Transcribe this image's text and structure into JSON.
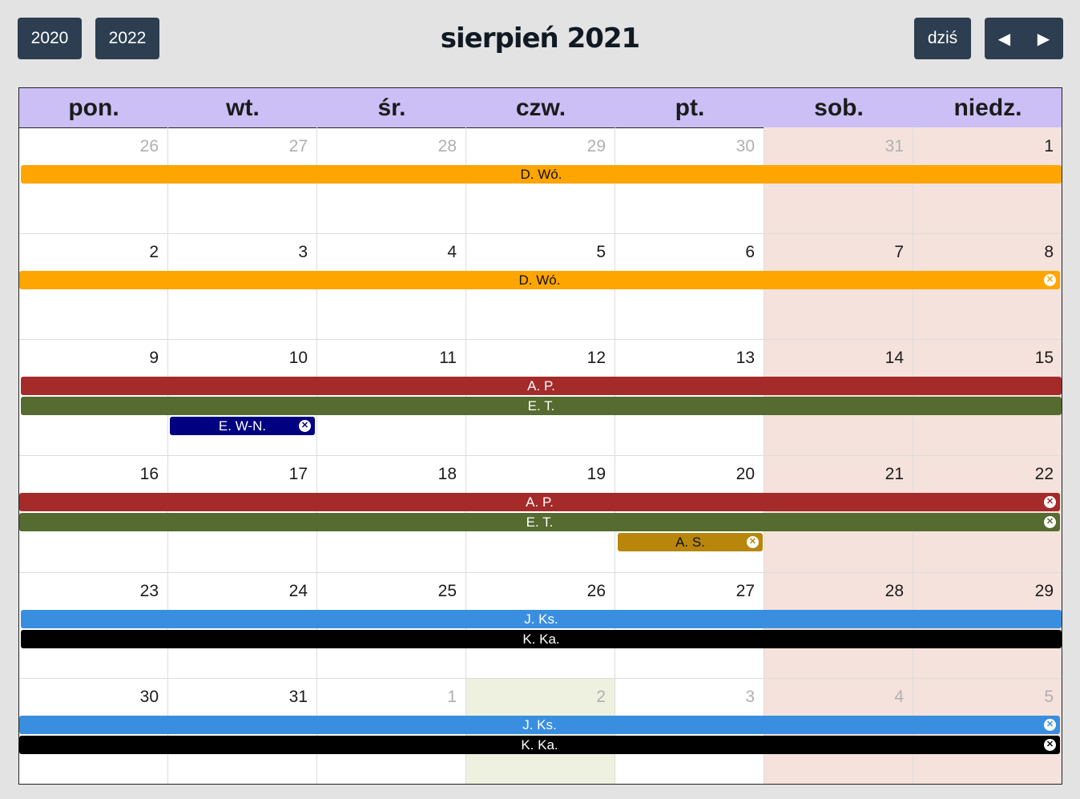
{
  "header": {
    "prev_year": "2020",
    "next_year": "2022",
    "title": "sierpień 2021",
    "today_label": "dziś",
    "prev_icon": "◀",
    "next_icon": "▶"
  },
  "weekdays": [
    "pon.",
    "wt.",
    "śr.",
    "czw.",
    "pt.",
    "sob.",
    "niedz."
  ],
  "weeks": [
    {
      "days": [
        [
          "26",
          true
        ],
        [
          "27",
          true
        ],
        [
          "28",
          true
        ],
        [
          "29",
          true
        ],
        [
          "30",
          true
        ],
        [
          "31",
          true
        ],
        [
          "1",
          false
        ]
      ]
    },
    {
      "days": [
        [
          "2",
          false
        ],
        [
          "3",
          false
        ],
        [
          "4",
          false
        ],
        [
          "5",
          false
        ],
        [
          "6",
          false
        ],
        [
          "7",
          false
        ],
        [
          "8",
          false
        ]
      ]
    },
    {
      "days": [
        [
          "9",
          false
        ],
        [
          "10",
          false
        ],
        [
          "11",
          false
        ],
        [
          "12",
          false
        ],
        [
          "13",
          false
        ],
        [
          "14",
          false
        ],
        [
          "15",
          false
        ]
      ]
    },
    {
      "days": [
        [
          "16",
          false
        ],
        [
          "17",
          false
        ],
        [
          "18",
          false
        ],
        [
          "19",
          false
        ],
        [
          "20",
          false
        ],
        [
          "21",
          false
        ],
        [
          "22",
          false
        ]
      ]
    },
    {
      "days": [
        [
          "23",
          false
        ],
        [
          "24",
          false
        ],
        [
          "25",
          false
        ],
        [
          "26",
          false
        ],
        [
          "27",
          false
        ],
        [
          "28",
          false
        ],
        [
          "29",
          false
        ]
      ]
    },
    {
      "days": [
        [
          "30",
          false
        ],
        [
          "31",
          false
        ],
        [
          "1",
          true
        ],
        [
          "2",
          true
        ],
        [
          "3",
          true
        ],
        [
          "4",
          true
        ],
        [
          "5",
          true
        ]
      ]
    }
  ],
  "events": {
    "w1_dwo": {
      "label": "D. Wó.",
      "color": "#ffa500",
      "text_color": "#111111"
    },
    "w2_dwo": {
      "label": "D. Wó.",
      "color": "#ffa500",
      "text_color": "#111111"
    },
    "w3_ap": {
      "label": "A. P.",
      "color": "#a52a2a",
      "text_color": "#ffffff"
    },
    "w3_et": {
      "label": "E. T.",
      "color": "#556b2f",
      "text_color": "#ffffff"
    },
    "w3_ewn": {
      "label": "E. W-N.",
      "color": "#000080",
      "text_color": "#ffffff"
    },
    "w4_ap": {
      "label": "A. P.",
      "color": "#a52a2a",
      "text_color": "#ffffff"
    },
    "w4_et": {
      "label": "E. T.",
      "color": "#556b2f",
      "text_color": "#ffffff"
    },
    "w4_as": {
      "label": "A. S.",
      "color": "#b8860b",
      "text_color": "#111111"
    },
    "w5_jks": {
      "label": "J. Ks.",
      "color": "#3a8ee0",
      "text_color": "#ffffff"
    },
    "w5_kka": {
      "label": "K. Ka.",
      "color": "#000000",
      "text_color": "#ffffff"
    },
    "w6_jks": {
      "label": "J. Ks.",
      "color": "#3a8ee0",
      "text_color": "#ffffff"
    },
    "w6_kka": {
      "label": "K. Ka.",
      "color": "#000000",
      "text_color": "#ffffff"
    }
  },
  "close_icon": "✕"
}
